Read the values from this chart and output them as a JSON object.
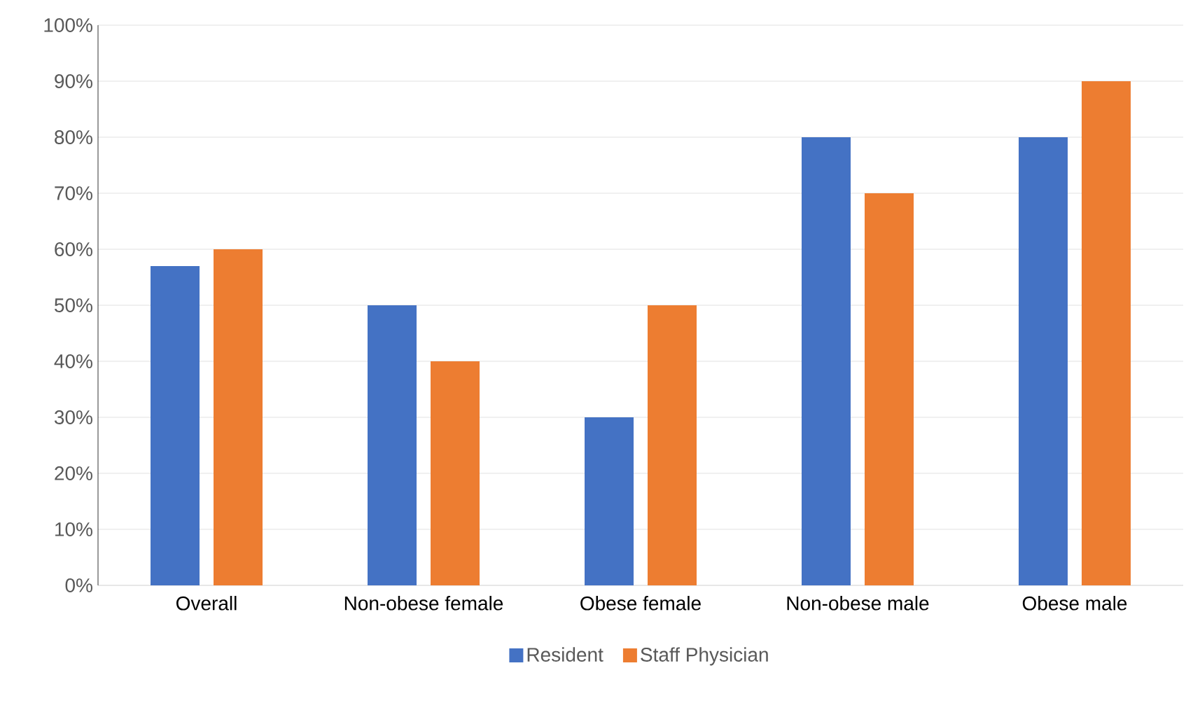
{
  "chart_data": {
    "type": "bar",
    "categories": [
      "Overall",
      "Non-obese female",
      "Obese female",
      "Non-obese male",
      "Obese male"
    ],
    "series": [
      {
        "name": "Resident",
        "color": "#4472c4",
        "values": [
          57,
          50,
          30,
          80,
          80
        ]
      },
      {
        "name": "Staff Physician",
        "color": "#ed7d31",
        "values": [
          60,
          40,
          50,
          70,
          90
        ]
      }
    ],
    "ylim": [
      0,
      100
    ],
    "yticks": [
      {
        "value": 0,
        "label": "0%"
      },
      {
        "value": 10,
        "label": "10%"
      },
      {
        "value": 20,
        "label": "20%"
      },
      {
        "value": 30,
        "label": "30%"
      },
      {
        "value": 40,
        "label": "40%"
      },
      {
        "value": 50,
        "label": "50%"
      },
      {
        "value": 60,
        "label": "60%"
      },
      {
        "value": 70,
        "label": "70%"
      },
      {
        "value": 80,
        "label": "80%"
      },
      {
        "value": 90,
        "label": "90%"
      },
      {
        "value": 100,
        "label": "100%"
      }
    ],
    "grid": "y",
    "legend": "bottom"
  }
}
